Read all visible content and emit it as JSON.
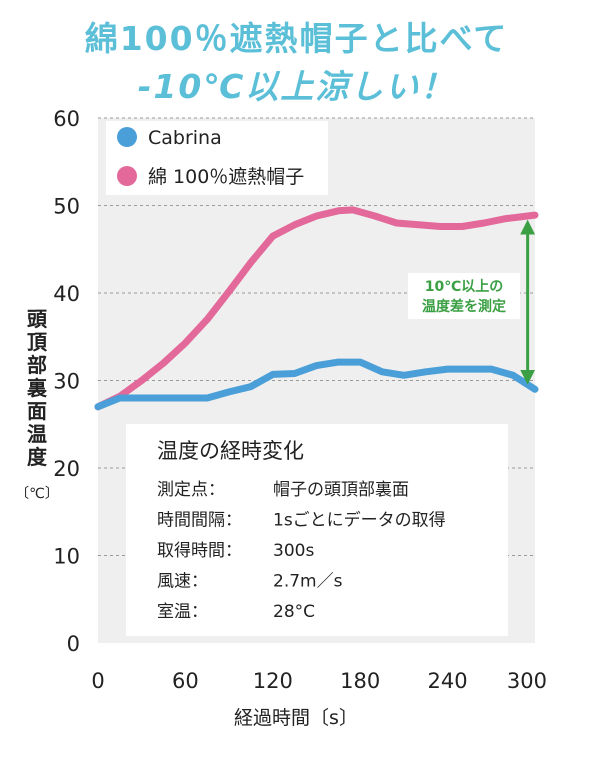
{
  "headline": {
    "line1": "綿100％遮熱帽子と比べて",
    "line2": "-10℃以上涼しい！"
  },
  "colors": {
    "cabrina": "#4a9fd8",
    "cotton": "#e3699a",
    "annotation": "#3aa043",
    "headline": "#5cbfd8",
    "plot_bg": "#efefef"
  },
  "chart_data": {
    "type": "line",
    "xlabel": "経過時間〔s〕",
    "ylabel_chars": [
      "頭",
      "頂",
      "部",
      "裏",
      "面",
      "温",
      "度"
    ],
    "ylabel_unit": "〔℃〕",
    "xlim": [
      0,
      300
    ],
    "ylim": [
      0,
      60
    ],
    "xticks": [
      0,
      60,
      120,
      180,
      240,
      300
    ],
    "yticks": [
      0,
      10,
      20,
      30,
      40,
      50,
      60
    ],
    "grid": "dashed horizontal",
    "legend_placement": "top-left",
    "series": [
      {
        "name": "Cabrina",
        "color": "#4a9fd8",
        "points": [
          [
            0,
            27
          ],
          [
            15,
            28
          ],
          [
            30,
            28
          ],
          [
            60,
            28
          ],
          [
            75,
            28
          ],
          [
            90,
            28.7
          ],
          [
            105,
            29.3
          ],
          [
            120,
            30.7
          ],
          [
            135,
            30.8
          ],
          [
            150,
            31.7
          ],
          [
            165,
            32.1
          ],
          [
            180,
            32.1
          ],
          [
            195,
            31
          ],
          [
            210,
            30.6
          ],
          [
            225,
            31
          ],
          [
            240,
            31.3
          ],
          [
            255,
            31.3
          ],
          [
            270,
            31.3
          ],
          [
            285,
            30.6
          ],
          [
            300,
            29
          ]
        ]
      },
      {
        "name": "綿 100％遮熱帽子",
        "color": "#e3699a",
        "points": [
          [
            0,
            27
          ],
          [
            15,
            28.2
          ],
          [
            30,
            30
          ],
          [
            45,
            32
          ],
          [
            60,
            34.3
          ],
          [
            75,
            37
          ],
          [
            90,
            40.2
          ],
          [
            105,
            43.5
          ],
          [
            120,
            46.5
          ],
          [
            135,
            47.8
          ],
          [
            150,
            48.8
          ],
          [
            165,
            49.4
          ],
          [
            175,
            49.5
          ],
          [
            190,
            48.8
          ],
          [
            205,
            48
          ],
          [
            220,
            47.8
          ],
          [
            235,
            47.6
          ],
          [
            250,
            47.6
          ],
          [
            265,
            48
          ],
          [
            280,
            48.5
          ],
          [
            300,
            48.9
          ]
        ]
      }
    ],
    "annotation": {
      "lines": [
        "10℃以上の",
        "温度差を測定"
      ],
      "x": 297,
      "y_from": 29,
      "y_to": 48.9
    },
    "infobox": {
      "title": "温度の経時変化",
      "rows": [
        {
          "label": "測定点：",
          "value": "帽子の頭頂部裏面"
        },
        {
          "label": "時間間隔：",
          "value": "1sごとにデータの取得"
        },
        {
          "label": "取得時間：",
          "value": "300s"
        },
        {
          "label": "風速：",
          "value": "2.7m／s"
        },
        {
          "label": "室温：",
          "value": "28°C"
        }
      ]
    }
  }
}
